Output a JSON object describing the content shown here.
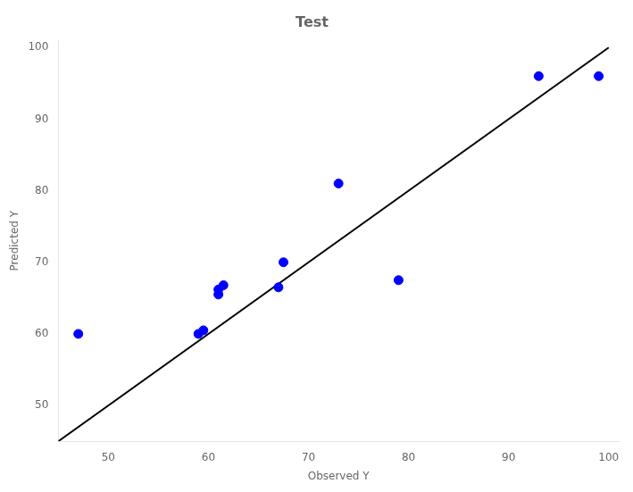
{
  "chart_data": {
    "type": "scatter",
    "title": "Test",
    "xlabel": "Observed Y",
    "ylabel": "Predicted Y",
    "xlim": [
      45,
      101
    ],
    "ylim": [
      45,
      101
    ],
    "xticks": [
      50,
      60,
      70,
      80,
      90,
      100
    ],
    "yticks": [
      50,
      60,
      70,
      80,
      90,
      100
    ],
    "grid": false,
    "series": [
      {
        "type": "line",
        "color": "#000000",
        "x": [
          45,
          100
        ],
        "values": [
          45,
          100
        ]
      },
      {
        "type": "scatter",
        "color": "#0000ff",
        "x": [
          47,
          59,
          59.5,
          61,
          61,
          61.5,
          67,
          67.5,
          73,
          79,
          93,
          99
        ],
        "values": [
          60,
          60,
          60.5,
          65.5,
          66.2,
          66.8,
          66.5,
          70,
          81,
          67.5,
          96,
          96
        ]
      }
    ]
  }
}
